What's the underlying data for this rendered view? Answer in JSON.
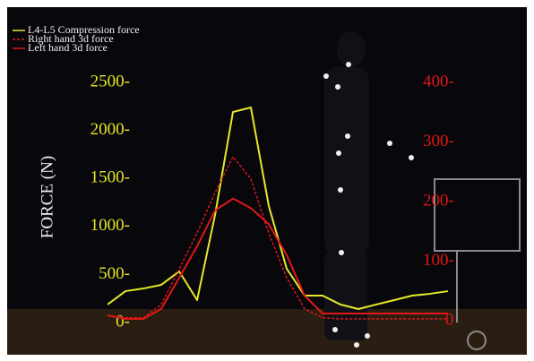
{
  "chart_data": {
    "type": "line",
    "ylabel": "FORCE (N)",
    "ylim": [
      0,
      2500
    ],
    "yticks": [
      {
        "value": 0,
        "label": "0-"
      },
      {
        "value": 500,
        "label": "500-"
      },
      {
        "value": 1000,
        "label": "1000-"
      },
      {
        "value": 1500,
        "label": "1500-"
      },
      {
        "value": 2000,
        "label": "2000-"
      },
      {
        "value": 2500,
        "label": "2500-"
      }
    ],
    "y2lim": [
      0,
      400
    ],
    "y2ticks": [
      0,
      {
        "value": 100,
        "label": "100-"
      },
      {
        "value": 200,
        "label": "200-"
      },
      {
        "value": 300,
        "label": "300-"
      },
      {
        "value": 400,
        "label": "400-"
      }
    ],
    "legend": "upper left",
    "series": [
      {
        "name": "L4-L5 Compression force",
        "color": "#e8e82a",
        "dash": false,
        "values": [
          187,
          326,
          354,
          392,
          532,
          233,
          1119,
          2192,
          2239,
          1213,
          560,
          280,
          280,
          187,
          140,
          187,
          233,
          280,
          299,
          326
        ]
      },
      {
        "name": "Right hand 3d force",
        "color": "#e01818",
        "dash": true,
        "axis": "y2",
        "values": [
          9,
          5,
          5,
          27,
          87,
          147,
          215,
          275,
          238,
          147,
          72,
          20,
          5,
          3,
          3,
          3,
          3,
          3,
          3,
          3
        ]
      },
      {
        "name": "Left hand 3d force",
        "color": "#e01818",
        "dash": false,
        "axis": "y2",
        "values": [
          9,
          3,
          3,
          20,
          72,
          125,
          185,
          205,
          189,
          162,
          110,
          42,
          12,
          12,
          12,
          12,
          12,
          12,
          12,
          12
        ]
      }
    ]
  }
}
